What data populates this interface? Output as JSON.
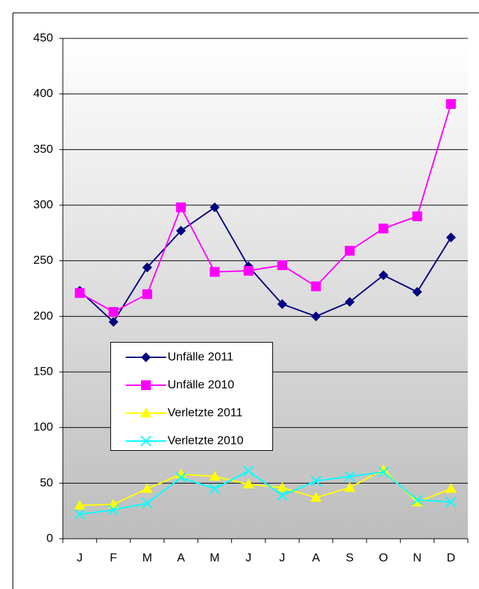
{
  "chart_data": {
    "type": "line",
    "categories": [
      "J",
      "F",
      "M",
      "A",
      "M",
      "J",
      "J",
      "A",
      "S",
      "O",
      "N",
      "D"
    ],
    "series": [
      {
        "name": "Unfälle 2011",
        "color": "#000080",
        "marker": "diamond",
        "values": [
          223,
          195,
          244,
          277,
          298,
          245,
          211,
          200,
          213,
          237,
          222,
          271
        ]
      },
      {
        "name": "Unfälle 2010",
        "color": "#ff00ff",
        "marker": "square",
        "values": [
          221,
          204,
          220,
          298,
          240,
          241,
          246,
          227,
          259,
          279,
          290,
          391
        ]
      },
      {
        "name": "Verletzte 2011",
        "color": "#ffff00",
        "marker": "triangle",
        "values": [
          30,
          31,
          45,
          58,
          56,
          49,
          46,
          37,
          46,
          62,
          33,
          45
        ]
      },
      {
        "name": "Verletzte 2010",
        "color": "#00ffff",
        "marker": "x",
        "values": [
          22,
          26,
          32,
          55,
          45,
          61,
          39,
          52,
          56,
          60,
          35,
          33
        ]
      }
    ],
    "ylim": [
      0,
      450
    ],
    "yticks": [
      0,
      50,
      100,
      150,
      200,
      250,
      300,
      350,
      400,
      450
    ],
    "grid": true
  }
}
